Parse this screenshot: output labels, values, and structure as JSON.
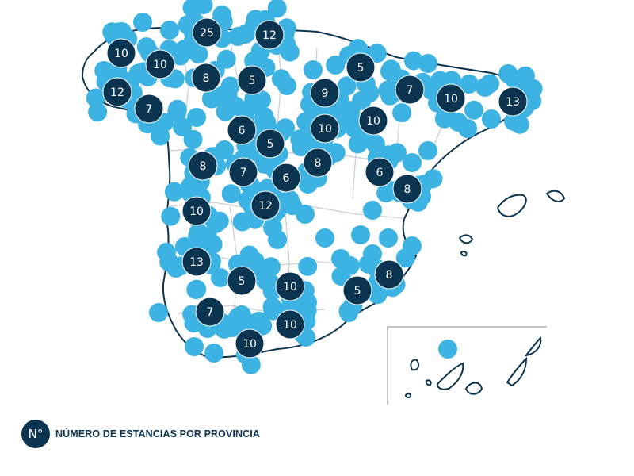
{
  "colors": {
    "land_outline": "#0b3450",
    "province_border": "#c9cdd1",
    "stay_dot": "#3db3e3",
    "cluster_badge": "#0b3450",
    "badge_text": "#ffffff",
    "inset_frame": "#8a9096"
  },
  "clusters": [
    {
      "id": "a-coruna",
      "count": "10"
    },
    {
      "id": "lugo",
      "count": "10"
    },
    {
      "id": "asturias",
      "count": "25"
    },
    {
      "id": "cantabria",
      "count": "12"
    },
    {
      "id": "pontevedra",
      "count": "12"
    },
    {
      "id": "ourense",
      "count": "7"
    },
    {
      "id": "leon",
      "count": "8"
    },
    {
      "id": "burgos",
      "count": "5"
    },
    {
      "id": "navarra",
      "count": "5"
    },
    {
      "id": "huesca",
      "count": "7"
    },
    {
      "id": "lleida",
      "count": "10"
    },
    {
      "id": "girona",
      "count": "13"
    },
    {
      "id": "la-rioja",
      "count": "9"
    },
    {
      "id": "soria",
      "count": "10"
    },
    {
      "id": "zaragoza",
      "count": "10"
    },
    {
      "id": "zamora",
      "count": "6"
    },
    {
      "id": "valladolid",
      "count": "5"
    },
    {
      "id": "salamanca",
      "count": "8"
    },
    {
      "id": "avila",
      "count": "7"
    },
    {
      "id": "madrid",
      "count": "6"
    },
    {
      "id": "guadalajara",
      "count": "8"
    },
    {
      "id": "teruel",
      "count": "6"
    },
    {
      "id": "castellon",
      "count": "8"
    },
    {
      "id": "caceres",
      "count": "10"
    },
    {
      "id": "toledo",
      "count": "12"
    },
    {
      "id": "badajoz",
      "count": "13"
    },
    {
      "id": "cordoba",
      "count": "5"
    },
    {
      "id": "jaen",
      "count": "10"
    },
    {
      "id": "murcia",
      "count": "5"
    },
    {
      "id": "alicante",
      "count": "8"
    },
    {
      "id": "sevilla",
      "count": "7"
    },
    {
      "id": "granada",
      "count": "10"
    },
    {
      "id": "malaga",
      "count": "10"
    }
  ],
  "legend": {
    "symbol": "N°",
    "label": "NÚMERO DE ESTANCIAS POR PROVINCIA"
  }
}
